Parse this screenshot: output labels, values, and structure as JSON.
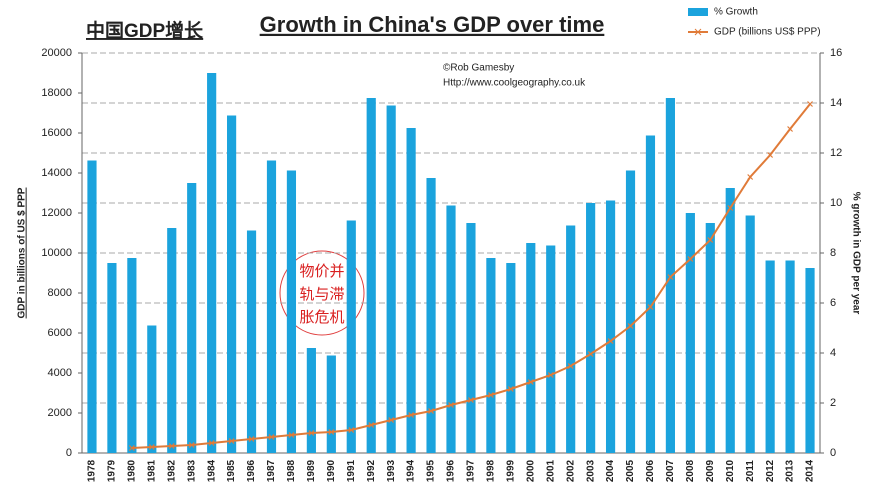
{
  "chart_data": {
    "type": "bar_line",
    "subtitle": "中国GDP增长",
    "title": "Growth in China's GDP over time",
    "annotations": [
      "©Rob Gamesby",
      "Http://www.coolgeography.co.uk"
    ],
    "circle_note": [
      "物价并",
      "轨与滞",
      "胀危机"
    ],
    "ylabel": "GDP in billions of US $ PPP",
    "y2label": "% growth in GDP per year",
    "categories": [
      "1978",
      "1979",
      "1980",
      "1981",
      "1982",
      "1983",
      "1984",
      "1985",
      "1986",
      "1987",
      "1988",
      "1989",
      "1990",
      "1991",
      "1992",
      "1993",
      "1994",
      "1995",
      "1996",
      "1997",
      "1998",
      "1999",
      "2000",
      "2001",
      "2002",
      "2003",
      "2004",
      "2005",
      "2006",
      "2007",
      "2008",
      "2009",
      "2010",
      "2011",
      "2012",
      "2013",
      "2014"
    ],
    "series": [
      {
        "name": "% Growth",
        "type": "bar",
        "axis": "y2",
        "color": "#1ba3dd",
        "values": [
          11.7,
          7.6,
          7.8,
          5.1,
          9.0,
          10.8,
          15.2,
          13.5,
          8.9,
          11.7,
          11.3,
          4.2,
          3.9,
          9.3,
          14.2,
          13.9,
          13.0,
          11.0,
          9.9,
          9.2,
          7.8,
          7.6,
          8.4,
          8.3,
          9.1,
          10.0,
          10.1,
          11.3,
          12.7,
          14.2,
          9.6,
          9.2,
          10.6,
          9.5,
          7.7,
          7.7,
          7.4
        ]
      },
      {
        "name": "GDP (billions US$ PPP)",
        "type": "line",
        "axis": "y",
        "color": "#e07b39",
        "values": [
          null,
          null,
          250,
          300,
          350,
          400,
          500,
          600,
          700,
          800,
          900,
          1000,
          1050,
          1150,
          1400,
          1650,
          1900,
          2100,
          2400,
          2650,
          2900,
          3200,
          3550,
          3900,
          4350,
          4950,
          5600,
          6350,
          7300,
          8800,
          9700,
          10650,
          12250,
          13800,
          14900,
          16200,
          17450
        ]
      }
    ],
    "ylim": [
      0,
      20000
    ],
    "yticks": [
      0,
      2000,
      4000,
      6000,
      8000,
      10000,
      12000,
      14000,
      16000,
      18000,
      20000
    ],
    "y2lim": [
      0,
      16
    ],
    "y2ticks": [
      0,
      2,
      4,
      6,
      8,
      10,
      12,
      14,
      16
    ],
    "grid": "y2",
    "legend": "top-right"
  }
}
